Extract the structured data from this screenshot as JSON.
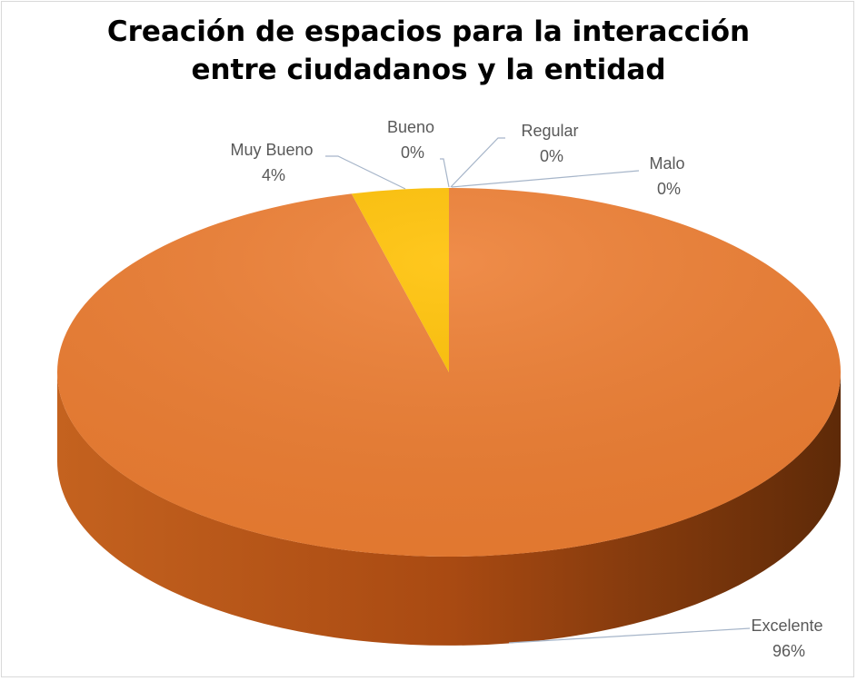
{
  "chart_data": {
    "type": "pie3d",
    "title": "Creación de espacios para la interacción entre ciudadanos y la entidad",
    "categories": [
      "Excelente",
      "Muy Bueno",
      "Bueno",
      "Regular",
      "Malo"
    ],
    "values": [
      96,
      4,
      0,
      0,
      0
    ],
    "value_labels": [
      "96%",
      "4%",
      "0%",
      "0%",
      "0%"
    ],
    "colors": [
      "#ed7d31",
      "#ffc000",
      "#a5a5a5",
      "#4472c4",
      "#5b9bd5"
    ]
  }
}
